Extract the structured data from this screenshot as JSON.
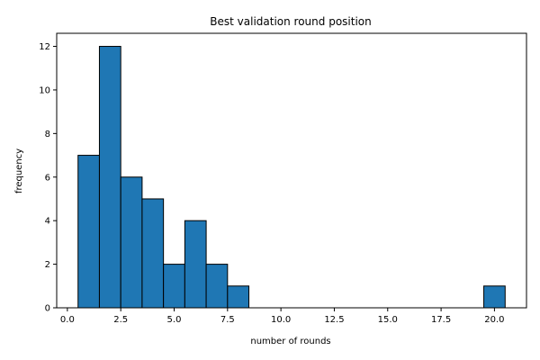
{
  "chart_data": {
    "type": "bar",
    "title": "Best validation round position",
    "xlabel": "number of rounds",
    "ylabel": "frequency",
    "xlim": [
      -0.5,
      21.5
    ],
    "ylim": [
      0,
      12.6
    ],
    "grid": false,
    "bar_color": "#1f77b4",
    "edge_color": "#000000",
    "bins": [
      {
        "x0": 0.5,
        "x1": 1.5,
        "value": 7
      },
      {
        "x0": 1.5,
        "x1": 2.5,
        "value": 12
      },
      {
        "x0": 2.5,
        "x1": 3.5,
        "value": 6
      },
      {
        "x0": 3.5,
        "x1": 4.5,
        "value": 5
      },
      {
        "x0": 4.5,
        "x1": 5.5,
        "value": 2
      },
      {
        "x0": 5.5,
        "x1": 6.5,
        "value": 4
      },
      {
        "x0": 6.5,
        "x1": 7.5,
        "value": 2
      },
      {
        "x0": 7.5,
        "x1": 8.5,
        "value": 1
      },
      {
        "x0": 19.5,
        "x1": 20.5,
        "value": 1
      }
    ],
    "x_ticks": [
      0.0,
      2.5,
      5.0,
      7.5,
      10.0,
      12.5,
      15.0,
      17.5,
      20.0
    ],
    "x_tick_labels": [
      "0.0",
      "2.5",
      "5.0",
      "7.5",
      "10.0",
      "12.5",
      "15.0",
      "17.5",
      "20.0"
    ],
    "y_ticks": [
      0,
      2,
      4,
      6,
      8,
      10,
      12
    ],
    "y_tick_labels": [
      "0",
      "2",
      "4",
      "6",
      "8",
      "10",
      "12"
    ]
  }
}
